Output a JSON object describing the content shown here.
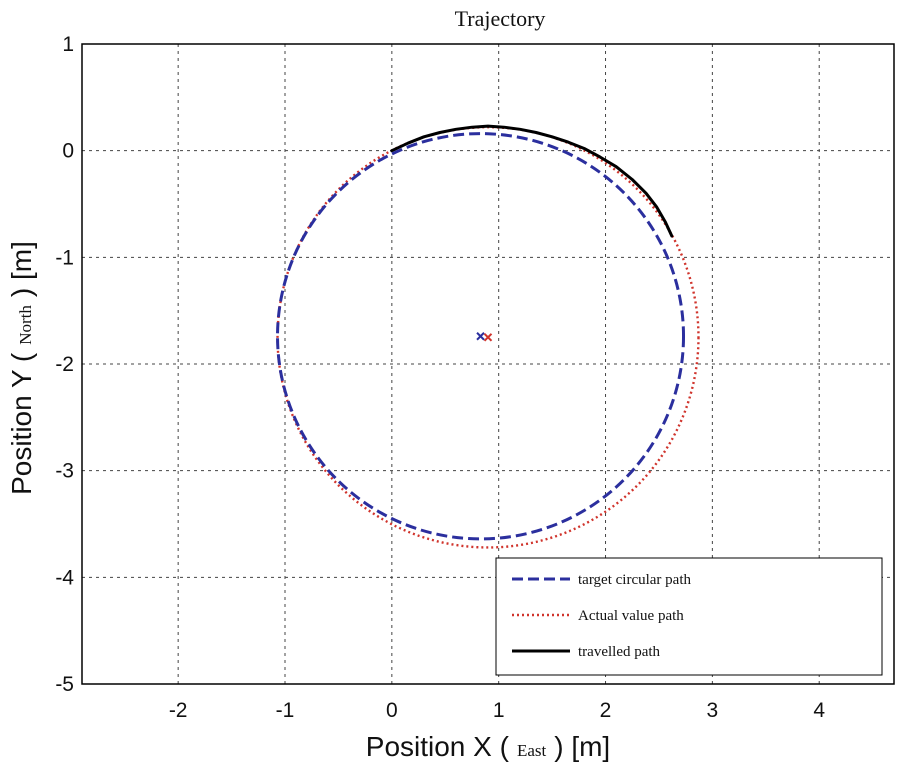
{
  "chart_data": {
    "type": "line",
    "title": "Trajectory",
    "xlabel": "Position X (East) [m]",
    "xlabel_parts": [
      "Position X (",
      "East",
      ") [m]"
    ],
    "ylabel": "Position Y (North) [m]",
    "ylabel_parts": [
      "Position Y (",
      "North",
      ") [m]"
    ],
    "xlim": [
      -2.9,
      4.7
    ],
    "ylim": [
      -5,
      1
    ],
    "xticks": [
      -2,
      -1,
      0,
      1,
      2,
      3,
      4
    ],
    "yticks": [
      1,
      0,
      -1,
      -2,
      -3,
      -4,
      -5
    ],
    "grid": true,
    "legend_position": "bottom-right",
    "series": [
      {
        "name": "target circular path",
        "shape": "circle",
        "center": [
          0.83,
          -1.74
        ],
        "radius": 1.9,
        "color": "#2b2f9e",
        "style": "dashed"
      },
      {
        "name": "Actual value path",
        "shape": "circle",
        "center": [
          0.9,
          -1.75
        ],
        "radius": 1.97,
        "color": "#d0342c",
        "style": "dotted"
      },
      {
        "name": "travelled path",
        "color": "#000000",
        "style": "solid",
        "x": [
          0.0,
          0.15,
          0.3,
          0.45,
          0.6,
          0.75,
          0.9,
          1.05,
          1.2,
          1.35,
          1.5,
          1.65,
          1.8,
          1.95,
          2.1,
          2.25,
          2.38,
          2.48,
          2.56,
          2.62
        ],
        "y": [
          0.0,
          0.07,
          0.13,
          0.17,
          0.2,
          0.22,
          0.23,
          0.22,
          0.2,
          0.17,
          0.13,
          0.08,
          0.02,
          -0.06,
          -0.15,
          -0.27,
          -0.4,
          -0.53,
          -0.67,
          -0.8
        ]
      }
    ],
    "markers": [
      {
        "x": 0.83,
        "y": -1.74,
        "color": "#2b2f9e",
        "symbol": "x"
      },
      {
        "x": 0.9,
        "y": -1.75,
        "color": "#d0342c",
        "symbol": "x"
      }
    ]
  }
}
